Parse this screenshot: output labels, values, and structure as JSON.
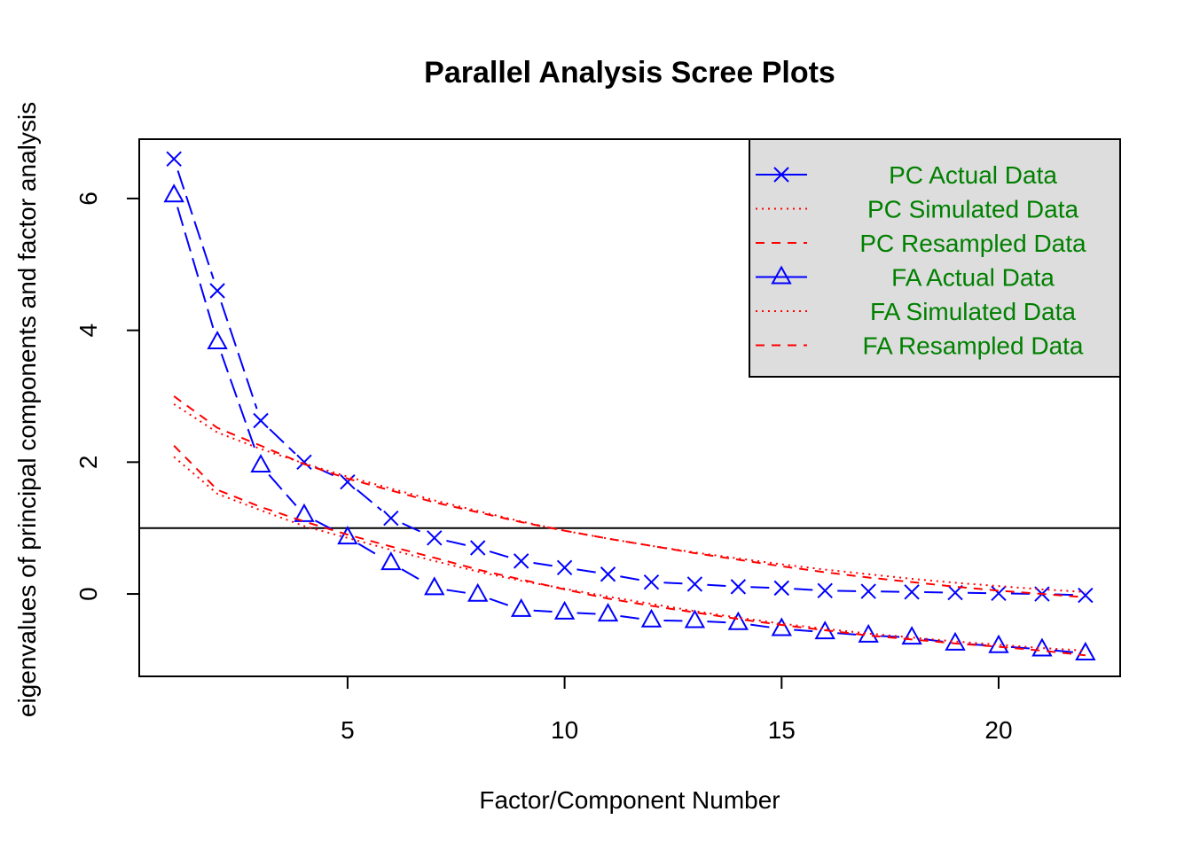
{
  "chart_data": {
    "type": "line",
    "title": "Parallel Analysis Scree Plots",
    "xlabel": "Factor/Component Number",
    "ylabel": "eigenvalues of principal components and factor analysis",
    "xlim": [
      0.2,
      22.8
    ],
    "ylim": [
      -1.25,
      6.9
    ],
    "xticks": [
      5,
      10,
      15,
      20
    ],
    "yticks": [
      0,
      2,
      4,
      6
    ],
    "reference_line_y": 1,
    "grid": false,
    "legend": {
      "position": "top-right",
      "background": "#dddddd",
      "entries": [
        {
          "series": 0,
          "text": "PC  Actual Data"
        },
        {
          "series": 1,
          "text": "PC  Simulated Data"
        },
        {
          "series": 2,
          "text": "PC  Resampled Data"
        },
        {
          "series": 3,
          "text": "FA  Actual Data"
        },
        {
          "series": 4,
          "text": "FA  Simulated Data"
        },
        {
          "series": 5,
          "text": "FA  Resampled Data"
        }
      ]
    },
    "x": [
      1,
      2,
      3,
      4,
      5,
      6,
      7,
      8,
      9,
      10,
      11,
      12,
      13,
      14,
      15,
      16,
      17,
      18,
      19,
      20,
      21,
      22
    ],
    "series": [
      {
        "name": "PC  Actual Data",
        "color": "#0000ff",
        "line": "longdash",
        "marker": "x",
        "values": [
          6.6,
          4.6,
          2.63,
          2.0,
          1.7,
          1.15,
          0.85,
          0.7,
          0.5,
          0.4,
          0.3,
          0.18,
          0.15,
          0.11,
          0.09,
          0.05,
          0.04,
          0.03,
          0.02,
          0.01,
          0.0,
          -0.02
        ]
      },
      {
        "name": "PC  Simulated Data",
        "color": "#ff0000",
        "line": "dotted",
        "marker": "none",
        "values": [
          2.88,
          2.45,
          2.2,
          1.98,
          1.78,
          1.6,
          1.42,
          1.26,
          1.1,
          0.96,
          0.84,
          0.73,
          0.63,
          0.54,
          0.45,
          0.37,
          0.3,
          0.23,
          0.17,
          0.12,
          0.07,
          0.03
        ]
      },
      {
        "name": "PC  Resampled Data",
        "color": "#ff0000",
        "line": "dashed",
        "marker": "none",
        "values": [
          3.0,
          2.52,
          2.25,
          1.97,
          1.75,
          1.57,
          1.39,
          1.24,
          1.09,
          0.96,
          0.84,
          0.73,
          0.62,
          0.52,
          0.42,
          0.33,
          0.25,
          0.18,
          0.11,
          0.05,
          0.0,
          -0.05
        ]
      },
      {
        "name": "FA  Actual Data",
        "color": "#0000ff",
        "line": "longdash",
        "marker": "triangle",
        "values": [
          6.05,
          3.82,
          1.95,
          1.2,
          0.86,
          0.47,
          0.09,
          -0.01,
          -0.24,
          -0.28,
          -0.31,
          -0.4,
          -0.41,
          -0.44,
          -0.53,
          -0.58,
          -0.63,
          -0.66,
          -0.75,
          -0.79,
          -0.84,
          -0.9
        ]
      },
      {
        "name": "FA  Simulated Data",
        "color": "#ff0000",
        "line": "dotted",
        "marker": "none",
        "values": [
          2.08,
          1.52,
          1.27,
          1.03,
          0.85,
          0.67,
          0.5,
          0.34,
          0.2,
          0.08,
          -0.04,
          -0.15,
          -0.26,
          -0.36,
          -0.45,
          -0.53,
          -0.6,
          -0.66,
          -0.72,
          -0.77,
          -0.82,
          -0.86
        ]
      },
      {
        "name": "FA  Resampled Data",
        "color": "#ff0000",
        "line": "dashed",
        "marker": "none",
        "values": [
          2.25,
          1.58,
          1.32,
          1.1,
          0.9,
          0.72,
          0.55,
          0.37,
          0.22,
          0.07,
          -0.07,
          -0.18,
          -0.28,
          -0.38,
          -0.47,
          -0.55,
          -0.63,
          -0.69,
          -0.75,
          -0.8,
          -0.86,
          -0.93
        ]
      }
    ]
  }
}
